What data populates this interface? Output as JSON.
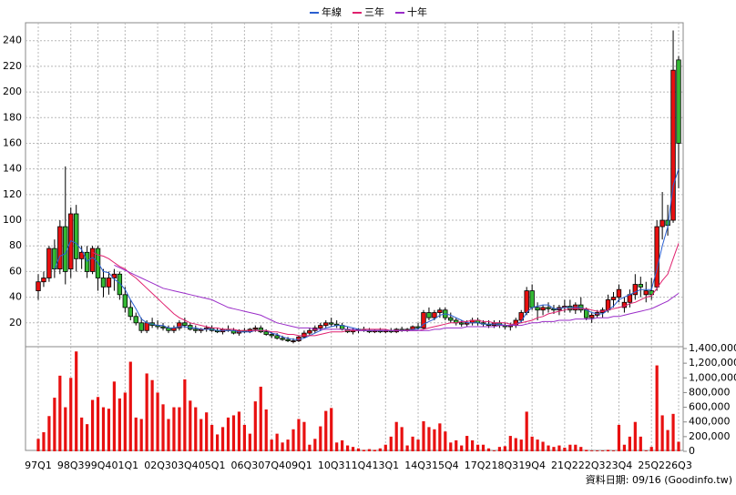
{
  "chart_data": {
    "type": "candlestick",
    "legend_position": "top",
    "note": "資料日期: 09/16 (Goodinfo.tw)",
    "grid": true,
    "up_color": "#e81010",
    "down_color": "#33b833",
    "ylim": [
      0,
      254
    ],
    "yticks": [
      20,
      40,
      60,
      80,
      100,
      120,
      140,
      160,
      180,
      200,
      220,
      240
    ],
    "categories": [
      "97Q1",
      null,
      null,
      null,
      null,
      null,
      "98Q3",
      null,
      null,
      null,
      null,
      "99Q4",
      null,
      null,
      null,
      null,
      "01Q1",
      null,
      null,
      null,
      null,
      null,
      "02Q3",
      null,
      null,
      null,
      null,
      "03Q4",
      null,
      null,
      null,
      null,
      "05Q1",
      null,
      null,
      null,
      null,
      null,
      "06Q3",
      null,
      null,
      null,
      null,
      "07Q4",
      null,
      null,
      null,
      null,
      "09Q1",
      null,
      null,
      null,
      null,
      null,
      "10Q3",
      null,
      null,
      null,
      null,
      "11Q4",
      null,
      null,
      null,
      null,
      "13Q1",
      null,
      null,
      null,
      null,
      null,
      "14Q3",
      null,
      null,
      null,
      null,
      "15Q4",
      null,
      null,
      null,
      null,
      null,
      "17Q2",
      null,
      null,
      null,
      null,
      "18Q3",
      null,
      null,
      null,
      null,
      "19Q4",
      null,
      null,
      null,
      null,
      null,
      "21Q2",
      null,
      null,
      null,
      null,
      "22Q3",
      null,
      null,
      null,
      null,
      "23Q4",
      null,
      null,
      null,
      null,
      null,
      "25Q2",
      null,
      null,
      null,
      null,
      "26Q3"
    ],
    "candles": [
      [
        45,
        58,
        38,
        52
      ],
      [
        52,
        60,
        48,
        55
      ],
      [
        55,
        80,
        52,
        78
      ],
      [
        78,
        85,
        55,
        62
      ],
      [
        62,
        100,
        58,
        95
      ],
      [
        95,
        142,
        50,
        60
      ],
      [
        62,
        110,
        55,
        105
      ],
      [
        105,
        112,
        60,
        70
      ],
      [
        70,
        80,
        62,
        75
      ],
      [
        75,
        80,
        55,
        60
      ],
      [
        60,
        80,
        58,
        78
      ],
      [
        78,
        80,
        45,
        55
      ],
      [
        55,
        62,
        40,
        48
      ],
      [
        48,
        60,
        42,
        55
      ],
      [
        55,
        62,
        45,
        58
      ],
      [
        58,
        60,
        38,
        42
      ],
      [
        42,
        48,
        28,
        32
      ],
      [
        32,
        38,
        22,
        25
      ],
      [
        25,
        28,
        18,
        20
      ],
      [
        20,
        24,
        12,
        14
      ],
      [
        14,
        22,
        12,
        20
      ],
      [
        20,
        24,
        16,
        18
      ],
      [
        18,
        22,
        15,
        17
      ],
      [
        17,
        20,
        14,
        16
      ],
      [
        16,
        18,
        12,
        14
      ],
      [
        14,
        18,
        12,
        16
      ],
      [
        16,
        22,
        14,
        20
      ],
      [
        20,
        24,
        16,
        18
      ],
      [
        18,
        20,
        14,
        15
      ],
      [
        15,
        18,
        12,
        14
      ],
      [
        14,
        16,
        12,
        15
      ],
      [
        15,
        18,
        13,
        16
      ],
      [
        16,
        18,
        13,
        14
      ],
      [
        14,
        16,
        12,
        13
      ],
      [
        13,
        16,
        11,
        15
      ],
      [
        15,
        18,
        13,
        14
      ],
      [
        14,
        16,
        11,
        12
      ],
      [
        12,
        15,
        10,
        14
      ],
      [
        14,
        16,
        12,
        13
      ],
      [
        13,
        16,
        12,
        15
      ],
      [
        15,
        18,
        13,
        16
      ],
      [
        16,
        18,
        12,
        13
      ],
      [
        13,
        15,
        10,
        11
      ],
      [
        11,
        13,
        8,
        10
      ],
      [
        10,
        12,
        7,
        8
      ],
      [
        8,
        10,
        6,
        7
      ],
      [
        7,
        9,
        5,
        6
      ],
      [
        6,
        8,
        4,
        6
      ],
      [
        6,
        10,
        5,
        9
      ],
      [
        9,
        14,
        8,
        12
      ],
      [
        12,
        16,
        10,
        14
      ],
      [
        14,
        18,
        12,
        16
      ],
      [
        16,
        20,
        14,
        18
      ],
      [
        18,
        22,
        16,
        20
      ],
      [
        20,
        24,
        17,
        19
      ],
      [
        19,
        22,
        16,
        18
      ],
      [
        18,
        20,
        14,
        15
      ],
      [
        15,
        17,
        12,
        13
      ],
      [
        13,
        16,
        11,
        14
      ],
      [
        14,
        16,
        12,
        15
      ],
      [
        15,
        17,
        13,
        14
      ],
      [
        14,
        16,
        12,
        13
      ],
      [
        13,
        15,
        12,
        14
      ],
      [
        14,
        16,
        12,
        13
      ],
      [
        13,
        15,
        12,
        14
      ],
      [
        14,
        16,
        12,
        13
      ],
      [
        13,
        16,
        12,
        15
      ],
      [
        15,
        17,
        13,
        14
      ],
      [
        14,
        16,
        13,
        15
      ],
      [
        15,
        18,
        14,
        17
      ],
      [
        17,
        20,
        15,
        16
      ],
      [
        16,
        30,
        15,
        28
      ],
      [
        28,
        32,
        22,
        24
      ],
      [
        24,
        30,
        22,
        28
      ],
      [
        28,
        32,
        24,
        30
      ],
      [
        30,
        32,
        22,
        24
      ],
      [
        24,
        28,
        20,
        22
      ],
      [
        22,
        24,
        18,
        20
      ],
      [
        20,
        22,
        17,
        19
      ],
      [
        19,
        22,
        17,
        20
      ],
      [
        20,
        24,
        18,
        22
      ],
      [
        22,
        24,
        18,
        20
      ],
      [
        20,
        22,
        17,
        19
      ],
      [
        19,
        22,
        16,
        18
      ],
      [
        18,
        22,
        16,
        20
      ],
      [
        20,
        22,
        16,
        18
      ],
      [
        18,
        20,
        15,
        17
      ],
      [
        17,
        20,
        14,
        18
      ],
      [
        18,
        24,
        16,
        22
      ],
      [
        22,
        30,
        20,
        28
      ],
      [
        28,
        48,
        26,
        45
      ],
      [
        45,
        50,
        30,
        32
      ],
      [
        32,
        36,
        22,
        30
      ],
      [
        30,
        34,
        26,
        32
      ],
      [
        32,
        36,
        28,
        31
      ],
      [
        31,
        34,
        27,
        30
      ],
      [
        30,
        34,
        26,
        32
      ],
      [
        32,
        38,
        28,
        33
      ],
      [
        33,
        38,
        28,
        30
      ],
      [
        30,
        36,
        27,
        34
      ],
      [
        34,
        40,
        28,
        30
      ],
      [
        30,
        32,
        22,
        24
      ],
      [
        24,
        28,
        20,
        26
      ],
      [
        26,
        30,
        24,
        28
      ],
      [
        28,
        32,
        24,
        30
      ],
      [
        30,
        42,
        28,
        38
      ],
      [
        38,
        44,
        32,
        40
      ],
      [
        40,
        50,
        36,
        46
      ],
      [
        32,
        40,
        28,
        36
      ],
      [
        36,
        46,
        32,
        42
      ],
      [
        42,
        58,
        38,
        50
      ],
      [
        50,
        56,
        40,
        48
      ],
      [
        42,
        52,
        36,
        45
      ],
      [
        45,
        55,
        38,
        42
      ],
      [
        48,
        100,
        45,
        95
      ],
      [
        95,
        122,
        85,
        100
      ],
      [
        100,
        112,
        88,
        96
      ],
      [
        100,
        248,
        98,
        217
      ],
      [
        225,
        228,
        125,
        160
      ]
    ],
    "series": [
      {
        "name": "年線",
        "color": "#2a5fd0",
        "values": [
          null,
          null,
          null,
          62,
          72,
          74,
          84,
          82,
          77,
          68,
          71,
          67,
          60,
          59,
          54,
          51,
          46,
          38,
          31,
          23,
          20,
          19,
          18,
          18,
          16,
          16,
          17,
          17,
          16,
          16,
          15,
          15,
          15,
          14,
          14,
          14,
          14,
          13,
          13,
          13,
          14,
          14,
          14,
          12,
          11,
          9,
          8,
          7,
          7,
          8,
          10,
          12,
          14,
          16,
          17,
          18,
          18,
          17,
          16,
          15,
          14,
          14,
          14,
          14,
          14,
          14,
          14,
          14,
          14,
          15,
          15,
          19,
          21,
          23,
          26,
          27,
          26,
          24,
          22,
          20,
          20,
          20,
          19,
          19,
          19,
          19,
          18,
          18,
          19,
          21,
          28,
          32,
          33,
          34,
          34,
          31,
          31,
          32,
          32,
          32,
          32,
          30,
          28,
          27,
          27,
          30,
          33,
          38,
          40,
          42,
          44,
          46,
          46,
          46,
          62,
          80,
          95,
          127,
          140
        ]
      },
      {
        "name": "三年",
        "color": "#e0206e",
        "values": [
          null,
          null,
          null,
          null,
          null,
          null,
          null,
          null,
          null,
          null,
          75,
          73,
          72,
          70,
          67,
          64,
          62,
          58,
          55,
          51,
          47,
          43,
          39,
          35,
          31,
          27,
          24,
          22,
          20,
          19,
          18,
          17,
          16,
          16,
          15,
          15,
          15,
          14,
          14,
          14,
          14,
          14,
          14,
          13,
          13,
          12,
          11,
          11,
          10,
          10,
          10,
          10,
          11,
          12,
          13,
          13,
          13,
          14,
          14,
          14,
          15,
          15,
          15,
          15,
          15,
          14,
          14,
          14,
          14,
          14,
          14,
          15,
          16,
          17,
          18,
          19,
          20,
          20,
          21,
          21,
          22,
          22,
          21,
          21,
          20,
          20,
          20,
          19,
          19,
          20,
          21,
          22,
          24,
          25,
          27,
          28,
          29,
          30,
          31,
          31,
          31,
          31,
          30,
          29,
          29,
          30,
          31,
          32,
          33,
          35,
          36,
          38,
          40,
          41,
          47,
          53,
          58,
          70,
          82
        ]
      },
      {
        "name": "十年",
        "color": "#9a2cc8",
        "values": [
          null,
          null,
          null,
          null,
          null,
          null,
          null,
          null,
          null,
          null,
          null,
          null,
          null,
          null,
          65,
          63,
          61,
          59,
          57,
          55,
          53,
          51,
          49,
          47,
          46,
          45,
          44,
          43,
          42,
          41,
          40,
          39,
          38,
          36,
          34,
          32,
          31,
          30,
          29,
          28,
          27,
          26,
          24,
          22,
          20,
          19,
          18,
          17,
          16,
          16,
          16,
          15,
          15,
          15,
          15,
          15,
          15,
          15,
          15,
          14,
          14,
          14,
          14,
          14,
          14,
          14,
          14,
          14,
          14,
          14,
          14,
          14,
          14,
          15,
          15,
          16,
          16,
          16,
          16,
          17,
          17,
          17,
          17,
          17,
          17,
          18,
          18,
          18,
          18,
          18,
          19,
          20,
          20,
          21,
          21,
          21,
          22,
          22,
          22,
          23,
          23,
          23,
          23,
          24,
          24,
          24,
          25,
          25,
          26,
          27,
          28,
          29,
          30,
          31,
          33,
          35,
          37,
          40,
          43
        ]
      }
    ],
    "volume": {
      "color": "#e81010",
      "ylim": [
        0,
        1400000
      ],
      "yticks": [
        0,
        {
          "value": 200000,
          "label": "200,000"
        },
        {
          "value": 400000,
          "label": "400,000"
        },
        {
          "value": 600000,
          "label": "600,000"
        },
        {
          "value": 800000,
          "label": "800,000"
        },
        {
          "value": 1000000,
          "label": "1,000,000"
        },
        {
          "value": 1200000,
          "label": "1,200,000"
        },
        {
          "value": 1400000,
          "label": "1,400,000"
        }
      ],
      "values": [
        170000,
        260000,
        480000,
        730000,
        1030000,
        600000,
        1000000,
        1360000,
        460000,
        370000,
        700000,
        740000,
        600000,
        580000,
        950000,
        720000,
        800000,
        1220000,
        460000,
        440000,
        1060000,
        970000,
        800000,
        640000,
        440000,
        600000,
        600000,
        980000,
        690000,
        600000,
        440000,
        530000,
        360000,
        230000,
        330000,
        460000,
        490000,
        540000,
        360000,
        240000,
        680000,
        880000,
        570000,
        160000,
        240000,
        120000,
        160000,
        300000,
        440000,
        400000,
        90000,
        170000,
        340000,
        550000,
        590000,
        120000,
        150000,
        80000,
        60000,
        40000,
        20000,
        30000,
        20000,
        40000,
        90000,
        200000,
        400000,
        330000,
        80000,
        200000,
        160000,
        410000,
        330000,
        300000,
        380000,
        270000,
        120000,
        150000,
        80000,
        210000,
        150000,
        90000,
        90000,
        40000,
        10000,
        60000,
        70000,
        210000,
        180000,
        160000,
        540000,
        200000,
        160000,
        130000,
        80000,
        60000,
        80000,
        50000,
        90000,
        90000,
        60000,
        20000,
        10000,
        10000,
        10000,
        20000,
        10000,
        360000,
        90000,
        200000,
        400000,
        200000,
        10000,
        60000,
        1170000,
        490000,
        290000,
        510000,
        130000
      ]
    }
  }
}
